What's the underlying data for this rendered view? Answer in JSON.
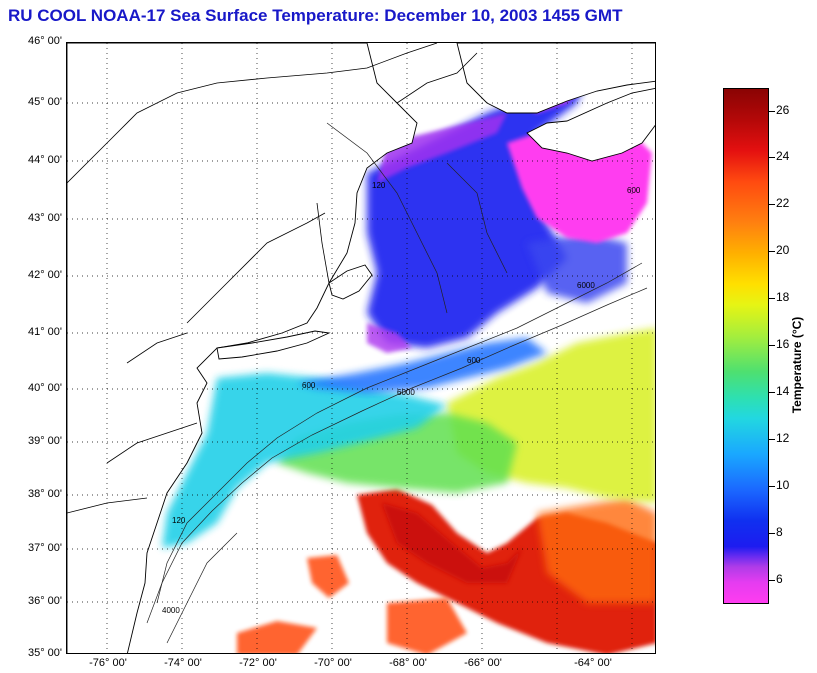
{
  "title": "RU COOL  NOAA-17  Sea Surface Temperature:  December 10, 2003 1455 GMT",
  "map": {
    "latitude_labels": [
      "46° 00'",
      "45° 00'",
      "44° 00'",
      "43° 00'",
      "42° 00'",
      "41° 00'",
      "40° 00'",
      "39° 00'",
      "38° 00'",
      "37° 00'",
      "36° 00'",
      "35° 00'"
    ],
    "longitude_labels": [
      "-76° 00'",
      "-74° 00'",
      "-72° 00'",
      "-70° 00'",
      "-68° 00'",
      "-66° 00'",
      "-64° 00'"
    ],
    "grid": "dotted",
    "isobath_labels": [
      "120",
      "600",
      "6000",
      "4000",
      "120",
      "600",
      "6000",
      "600"
    ]
  },
  "colorbar": {
    "title": "Temperature (°C)",
    "ticks": [
      "26",
      "24",
      "22",
      "20",
      "18",
      "16",
      "14",
      "12",
      "10",
      "8",
      "6"
    ],
    "range": [
      5,
      27
    ]
  },
  "colors": {
    "title": "#1818c8",
    "warm": "#e41c10",
    "cold": "#ff3cf0",
    "mid": "#22d8e0"
  }
}
